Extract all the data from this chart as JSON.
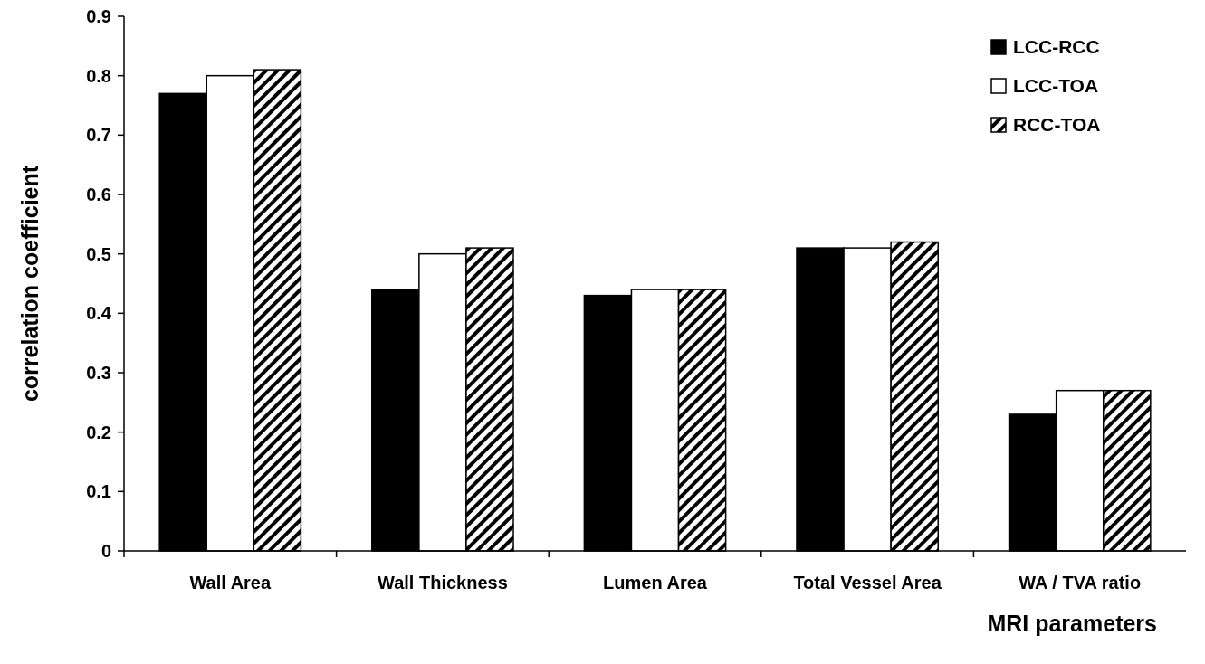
{
  "chart_data": {
    "type": "bar",
    "xlabel": "MRI parameters",
    "ylabel": "correlation coefficient",
    "categories": [
      "Wall Area",
      "Wall Thickness",
      "Lumen Area",
      "Total Vessel Area",
      "WA / TVA ratio"
    ],
    "series": [
      {
        "name": "LCC-RCC",
        "color": "#000000",
        "values": [
          0.77,
          0.44,
          0.43,
          0.51,
          0.23
        ]
      },
      {
        "name": "LCC-TOA",
        "color": "#ffffff",
        "values": [
          0.8,
          0.5,
          0.44,
          0.51,
          0.27
        ]
      },
      {
        "name": "RCC-TOA",
        "color": "#000000",
        "values": [
          0.81,
          0.51,
          0.44,
          0.52,
          0.27
        ]
      }
    ],
    "ylim": [
      0,
      0.9
    ],
    "yticks": [
      0,
      0.1,
      0.2,
      0.3,
      0.4,
      0.5,
      0.6,
      0.7,
      0.8,
      0.9
    ],
    "legend": "top right"
  }
}
